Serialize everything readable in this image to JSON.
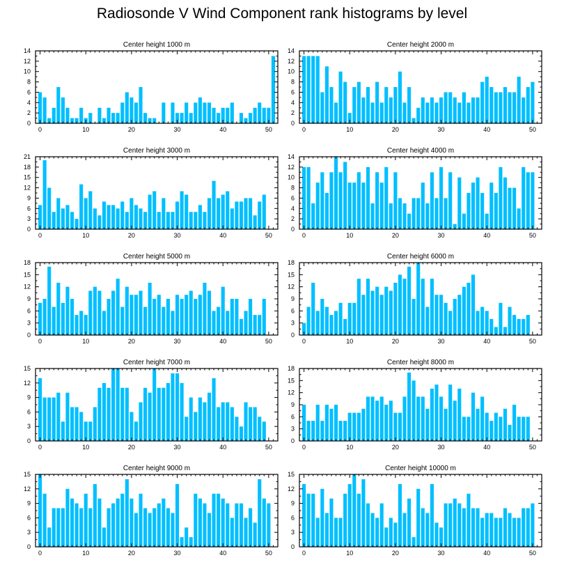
{
  "title": "Radiosonde V Wind Component rank histograms by level",
  "bar_color": "#00bfff",
  "chart_data": [
    {
      "type": "bar",
      "title": "Center height 1000 m",
      "xlim": [
        -1,
        52
      ],
      "xticks": [
        0,
        10,
        20,
        30,
        40,
        50
      ],
      "ylim": [
        0,
        14
      ],
      "yticks": [
        0,
        2,
        4,
        6,
        8,
        10,
        12,
        14
      ],
      "x": [
        0,
        1,
        2,
        3,
        4,
        5,
        6,
        7,
        8,
        9,
        10,
        11,
        12,
        13,
        14,
        15,
        16,
        17,
        18,
        19,
        20,
        21,
        22,
        23,
        24,
        25,
        26,
        27,
        28,
        29,
        30,
        31,
        32,
        33,
        34,
        35,
        36,
        37,
        38,
        39,
        40,
        41,
        42,
        43,
        44,
        45,
        46,
        47,
        48,
        49,
        50,
        51
      ],
      "values": [
        6,
        5,
        1,
        3,
        7,
        5,
        3,
        1,
        1,
        3,
        1,
        2,
        0,
        3,
        1,
        3,
        2,
        2,
        4,
        6,
        5,
        4,
        7,
        2,
        1,
        1,
        0,
        4,
        0,
        4,
        2,
        2,
        4,
        2,
        4,
        5,
        4,
        4,
        3,
        2,
        3,
        3,
        4,
        0,
        2,
        1,
        2,
        3,
        4,
        3,
        3,
        13
      ]
    },
    {
      "type": "bar",
      "title": "Center height 2000 m",
      "xlim": [
        -1,
        52
      ],
      "xticks": [
        0,
        10,
        20,
        30,
        40,
        50
      ],
      "ylim": [
        0,
        14
      ],
      "yticks": [
        0,
        2,
        4,
        6,
        8,
        10,
        12,
        14
      ],
      "x": [
        0,
        1,
        2,
        3,
        4,
        5,
        6,
        7,
        8,
        9,
        10,
        11,
        12,
        13,
        14,
        15,
        16,
        17,
        18,
        19,
        20,
        21,
        22,
        23,
        24,
        25,
        26,
        27,
        28,
        29,
        30,
        31,
        32,
        33,
        34,
        35,
        36,
        37,
        38,
        39,
        40,
        41,
        42,
        43,
        44,
        45,
        46,
        47,
        48,
        49,
        50,
        51
      ],
      "values": [
        13,
        13,
        13,
        13,
        6,
        11,
        7,
        4,
        10,
        8,
        2,
        7,
        8,
        5,
        7,
        4,
        8,
        4,
        7,
        5,
        7,
        10,
        4,
        7,
        1,
        3,
        5,
        4,
        5,
        4,
        5,
        6,
        6,
        5,
        4,
        6,
        4,
        5,
        5,
        8,
        9,
        7,
        6,
        6,
        7,
        6,
        6,
        9,
        5,
        7,
        8,
        0
      ]
    },
    {
      "type": "bar",
      "title": "Center height 3000 m",
      "xlim": [
        -1,
        52
      ],
      "xticks": [
        0,
        10,
        20,
        30,
        40,
        50
      ],
      "ylim": [
        0,
        21
      ],
      "yticks": [
        0,
        3,
        6,
        9,
        12,
        15,
        18,
        21
      ],
      "x": [
        0,
        1,
        2,
        3,
        4,
        5,
        6,
        7,
        8,
        9,
        10,
        11,
        12,
        13,
        14,
        15,
        16,
        17,
        18,
        19,
        20,
        21,
        22,
        23,
        24,
        25,
        26,
        27,
        28,
        29,
        30,
        31,
        32,
        33,
        34,
        35,
        36,
        37,
        38,
        39,
        40,
        41,
        42,
        43,
        44,
        45,
        46,
        47,
        48,
        49,
        50,
        51
      ],
      "values": [
        7,
        20,
        12,
        5,
        9,
        6,
        7,
        5,
        3,
        13,
        9,
        11,
        6,
        4,
        8,
        7,
        7,
        6,
        8,
        5,
        9,
        7,
        6,
        5,
        10,
        11,
        5,
        9,
        5,
        5,
        8,
        11,
        10,
        5,
        5,
        7,
        5,
        9,
        14,
        9,
        10,
        11,
        6,
        8,
        8,
        9,
        9,
        4,
        8,
        10,
        0,
        0
      ]
    },
    {
      "type": "bar",
      "title": "Center height 4000 m",
      "xlim": [
        -1,
        52
      ],
      "xticks": [
        0,
        10,
        20,
        30,
        40,
        50
      ],
      "ylim": [
        0,
        14
      ],
      "yticks": [
        0,
        2,
        4,
        6,
        8,
        10,
        12,
        14
      ],
      "x": [
        0,
        1,
        2,
        3,
        4,
        5,
        6,
        7,
        8,
        9,
        10,
        11,
        12,
        13,
        14,
        15,
        16,
        17,
        18,
        19,
        20,
        21,
        22,
        23,
        24,
        25,
        26,
        27,
        28,
        29,
        30,
        31,
        32,
        33,
        34,
        35,
        36,
        37,
        38,
        39,
        40,
        41,
        42,
        43,
        44,
        45,
        46,
        47,
        48,
        49,
        50,
        51
      ],
      "values": [
        12,
        12,
        5,
        9,
        11,
        7,
        11,
        14,
        11,
        13,
        9,
        9,
        11,
        9,
        12,
        5,
        11,
        9,
        12,
        5,
        11,
        6,
        5,
        3,
        6,
        6,
        9,
        5,
        11,
        6,
        12,
        6,
        11,
        1,
        10,
        3,
        7,
        9,
        10,
        7,
        3,
        9,
        7,
        12,
        10,
        8,
        8,
        4,
        12,
        11,
        11,
        0
      ]
    },
    {
      "type": "bar",
      "title": "Center height 5000 m",
      "xlim": [
        -1,
        52
      ],
      "xticks": [
        0,
        10,
        20,
        30,
        40,
        50
      ],
      "ylim": [
        0,
        18
      ],
      "yticks": [
        0,
        3,
        6,
        9,
        12,
        15,
        18
      ],
      "x": [
        0,
        1,
        2,
        3,
        4,
        5,
        6,
        7,
        8,
        9,
        10,
        11,
        12,
        13,
        14,
        15,
        16,
        17,
        18,
        19,
        20,
        21,
        22,
        23,
        24,
        25,
        26,
        27,
        28,
        29,
        30,
        31,
        32,
        33,
        34,
        35,
        36,
        37,
        38,
        39,
        40,
        41,
        42,
        43,
        44,
        45,
        46,
        47,
        48,
        49,
        50,
        51
      ],
      "values": [
        8,
        9,
        17,
        7,
        13,
        8,
        12,
        9,
        5,
        6,
        5,
        11,
        12,
        11,
        6,
        9,
        11,
        14,
        7,
        12,
        10,
        10,
        11,
        7,
        13,
        9,
        10,
        7,
        9,
        6,
        10,
        9,
        10,
        11,
        9,
        10,
        13,
        11,
        6,
        7,
        12,
        6,
        9,
        9,
        4,
        6,
        9,
        5,
        5,
        9,
        0,
        0
      ]
    },
    {
      "type": "bar",
      "title": "Center height 6000 m",
      "xlim": [
        -1,
        52
      ],
      "xticks": [
        0,
        10,
        20,
        30,
        40,
        50
      ],
      "ylim": [
        0,
        18
      ],
      "yticks": [
        0,
        3,
        6,
        9,
        12,
        15,
        18
      ],
      "x": [
        0,
        1,
        2,
        3,
        4,
        5,
        6,
        7,
        8,
        9,
        10,
        11,
        12,
        13,
        14,
        15,
        16,
        17,
        18,
        19,
        20,
        21,
        22,
        23,
        24,
        25,
        26,
        27,
        28,
        29,
        30,
        31,
        32,
        33,
        34,
        35,
        36,
        37,
        38,
        39,
        40,
        41,
        42,
        43,
        44,
        45,
        46,
        47,
        48,
        49,
        50,
        51
      ],
      "values": [
        3,
        7,
        13,
        6,
        9,
        7,
        5,
        6,
        8,
        4,
        8,
        8,
        14,
        10,
        14,
        11,
        12,
        10,
        12,
        11,
        13,
        15,
        14,
        17,
        9,
        18,
        14,
        7,
        14,
        10,
        10,
        8,
        6,
        9,
        10,
        12,
        13,
        15,
        6,
        7,
        6,
        4,
        2,
        8,
        2,
        7,
        5,
        4,
        4,
        5,
        0,
        0
      ]
    },
    {
      "type": "bar",
      "title": "Center height 7000 m",
      "xlim": [
        -1,
        52
      ],
      "xticks": [
        0,
        10,
        20,
        30,
        40,
        50
      ],
      "ylim": [
        0,
        15
      ],
      "yticks": [
        0,
        3,
        6,
        9,
        12,
        15
      ],
      "x": [
        0,
        1,
        2,
        3,
        4,
        5,
        6,
        7,
        8,
        9,
        10,
        11,
        12,
        13,
        14,
        15,
        16,
        17,
        18,
        19,
        20,
        21,
        22,
        23,
        24,
        25,
        26,
        27,
        28,
        29,
        30,
        31,
        32,
        33,
        34,
        35,
        36,
        37,
        38,
        39,
        40,
        41,
        42,
        43,
        44,
        45,
        46,
        47,
        48,
        49,
        50,
        51
      ],
      "values": [
        13,
        9,
        9,
        9,
        10,
        4,
        10,
        7,
        7,
        6,
        4,
        4,
        7,
        11,
        12,
        11,
        15,
        15,
        11,
        11,
        6,
        4,
        8,
        11,
        10,
        15,
        11,
        11,
        12,
        14,
        14,
        12,
        5,
        9,
        6,
        9,
        8,
        10,
        13,
        7,
        8,
        8,
        7,
        5,
        3,
        8,
        7,
        7,
        5,
        4,
        0,
        0
      ]
    },
    {
      "type": "bar",
      "title": "Center height 8000 m",
      "xlim": [
        -1,
        52
      ],
      "xticks": [
        0,
        10,
        20,
        30,
        40,
        50
      ],
      "ylim": [
        0,
        18
      ],
      "yticks": [
        0,
        3,
        6,
        9,
        12,
        15,
        18
      ],
      "x": [
        0,
        1,
        2,
        3,
        4,
        5,
        6,
        7,
        8,
        9,
        10,
        11,
        12,
        13,
        14,
        15,
        16,
        17,
        18,
        19,
        20,
        21,
        22,
        23,
        24,
        25,
        26,
        27,
        28,
        29,
        30,
        31,
        32,
        33,
        34,
        35,
        36,
        37,
        38,
        39,
        40,
        41,
        42,
        43,
        44,
        45,
        46,
        47,
        48,
        49,
        50,
        51
      ],
      "values": [
        9,
        5,
        5,
        9,
        5,
        9,
        8,
        9,
        5,
        5,
        7,
        7,
        7,
        8,
        11,
        11,
        10,
        11,
        9,
        10,
        7,
        7,
        11,
        17,
        15,
        11,
        11,
        8,
        13,
        14,
        11,
        8,
        14,
        10,
        13,
        6,
        6,
        12,
        8,
        11,
        7,
        5,
        7,
        6,
        8,
        4,
        9,
        6,
        6,
        6,
        0,
        0
      ]
    },
    {
      "type": "bar",
      "title": "Center height 9000 m",
      "xlim": [
        -1,
        52
      ],
      "xticks": [
        0,
        10,
        20,
        30,
        40,
        50
      ],
      "ylim": [
        0,
        15
      ],
      "yticks": [
        0,
        3,
        6,
        9,
        12,
        15
      ],
      "x": [
        0,
        1,
        2,
        3,
        4,
        5,
        6,
        7,
        8,
        9,
        10,
        11,
        12,
        13,
        14,
        15,
        16,
        17,
        18,
        19,
        20,
        21,
        22,
        23,
        24,
        25,
        26,
        27,
        28,
        29,
        30,
        31,
        32,
        33,
        34,
        35,
        36,
        37,
        38,
        39,
        40,
        41,
        42,
        43,
        44,
        45,
        46,
        47,
        48,
        49,
        50,
        51
      ],
      "values": [
        15,
        11,
        4,
        8,
        8,
        8,
        12,
        10,
        9,
        8,
        11,
        8,
        13,
        10,
        4,
        8,
        9,
        10,
        11,
        14,
        10,
        7,
        11,
        8,
        7,
        8,
        9,
        10,
        8,
        7,
        13,
        2,
        4,
        2,
        11,
        10,
        9,
        7,
        11,
        11,
        10,
        9,
        6,
        9,
        9,
        6,
        8,
        5,
        14,
        10,
        9,
        0
      ]
    },
    {
      "type": "bar",
      "title": "Center height 10000 m",
      "xlim": [
        -1,
        52
      ],
      "xticks": [
        0,
        10,
        20,
        30,
        40,
        50
      ],
      "ylim": [
        0,
        15
      ],
      "yticks": [
        0,
        3,
        6,
        9,
        12,
        15
      ],
      "x": [
        0,
        1,
        2,
        3,
        4,
        5,
        6,
        7,
        8,
        9,
        10,
        11,
        12,
        13,
        14,
        15,
        16,
        17,
        18,
        19,
        20,
        21,
        22,
        23,
        24,
        25,
        26,
        27,
        28,
        29,
        30,
        31,
        32,
        33,
        34,
        35,
        36,
        37,
        38,
        39,
        40,
        41,
        42,
        43,
        44,
        45,
        46,
        47,
        48,
        49,
        50,
        51
      ],
      "values": [
        13,
        11,
        11,
        6,
        12,
        7,
        10,
        6,
        6,
        11,
        13,
        15,
        11,
        14,
        9,
        7,
        6,
        9,
        4,
        6,
        5,
        13,
        7,
        10,
        2,
        12,
        8,
        7,
        13,
        5,
        4,
        9,
        9,
        10,
        9,
        8,
        11,
        8,
        8,
        6,
        7,
        7,
        6,
        6,
        8,
        7,
        6,
        6,
        8,
        8,
        9,
        0
      ]
    }
  ]
}
